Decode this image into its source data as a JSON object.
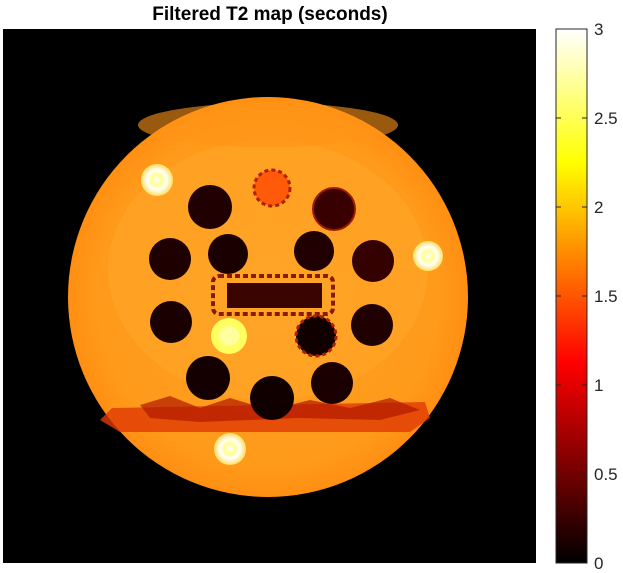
{
  "chart_data": {
    "type": "heatmap",
    "title": "Filtered T2 map (seconds)",
    "colormap": "hot",
    "clim": [
      0,
      3
    ],
    "colorbar": {
      "position": "right",
      "ticks": [
        0,
        0.5,
        1,
        1.5,
        2,
        2.5,
        3
      ],
      "tick_labels": [
        "0",
        "0.5",
        "1",
        "1.5",
        "2",
        "2.5",
        "3"
      ]
    },
    "background_value": 0,
    "phantom_background_value": 1.75,
    "features": [
      {
        "name": "phantom-disk",
        "value": 1.75
      },
      {
        "name": "center-vial",
        "value": 1.4
      },
      {
        "name": "low-T2-vial",
        "value": 0.08
      },
      {
        "name": "medium-low-T2-vial",
        "value": 0.3
      },
      {
        "name": "high-T2-vial",
        "value": 2.9
      },
      {
        "name": "high-T2-vial-2",
        "value": 2.6
      },
      {
        "name": "center-rectangle",
        "value": 0.55
      },
      {
        "name": "bottom-band",
        "value": 1.3
      }
    ]
  }
}
